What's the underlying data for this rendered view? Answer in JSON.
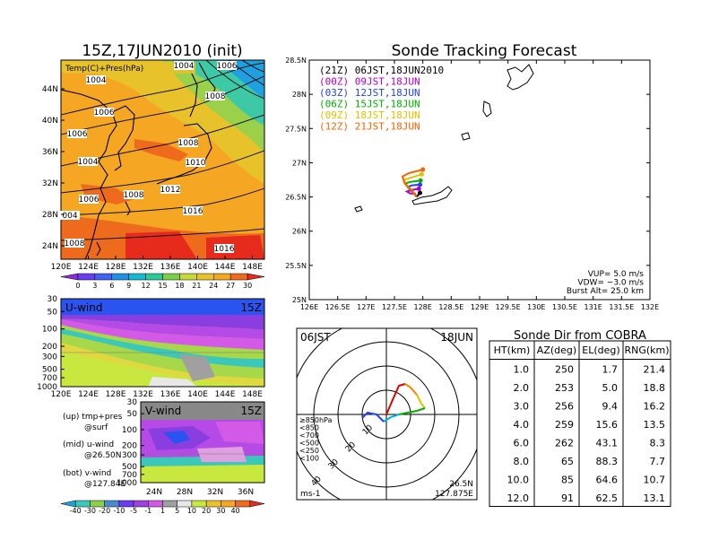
{
  "left": {
    "title": "15Z,17JUN2010 (init)",
    "map_label": "Temp(C)+Pres(hPa)",
    "lat_ticks": [
      "44N",
      "40N",
      "36N",
      "32N",
      "28N",
      "24N"
    ],
    "lon_ticks": [
      "120E",
      "124E",
      "128E",
      "132E",
      "136E",
      "140E",
      "144E",
      "148E"
    ],
    "isobar_labels": [
      "1006",
      "1004",
      "1004",
      "1006",
      "1008",
      "1006",
      "1008",
      "1010",
      "1004",
      "1012",
      "1006",
      "1008",
      "1016",
      "004",
      "1008",
      "1016"
    ],
    "temp_colorbar": [
      "0",
      "3",
      "6",
      "9",
      "12",
      "15",
      "18",
      "21",
      "24",
      "27",
      "30"
    ],
    "uwind_label": "U-wind",
    "uwind_time": "15Z",
    "vwind_label": "V-wind",
    "vwind_time": "15Z",
    "pres_ticks": [
      "30",
      "50",
      "100",
      "200",
      "300",
      "500",
      "700",
      "1000"
    ],
    "vwind_lat_ticks": [
      "24N",
      "28N",
      "32N",
      "36N"
    ],
    "notes": [
      "(up) tmp+pres",
      "@surf",
      "(mid) u-wind",
      "@26.50N",
      "(bot) v-wind",
      "@127.84E"
    ],
    "wind_colorbar": [
      "-40",
      "-30",
      "-20",
      "-10",
      "-5",
      "-1",
      "1",
      "5",
      "10",
      "20",
      "30",
      "40"
    ]
  },
  "track": {
    "title": "Sonde Tracking Forecast",
    "lat_ticks": [
      "28.5N",
      "28N",
      "27.5N",
      "27N",
      "26.5N",
      "26N",
      "25.5N",
      "25N"
    ],
    "lon_ticks": [
      "126E",
      "126.5E",
      "127E",
      "127.5E",
      "128E",
      "128.5E",
      "129E",
      "129.5E",
      "130E",
      "130.5E",
      "131E",
      "131.5E",
      "132E"
    ],
    "legend": [
      {
        "text": "(21Z)  06JST,18JUN2010",
        "color": "#000000"
      },
      {
        "text": "(00Z)  09JST,18JUN",
        "color": "#b000c8"
      },
      {
        "text": "(03Z)  12JST,18JUN",
        "color": "#2040ff"
      },
      {
        "text": "(06Z)  15JST,18JUN",
        "color": "#00b000"
      },
      {
        "text": "(09Z)  18JST,18JUN",
        "color": "#e0c000"
      },
      {
        "text": "(12Z)  21JST,18JUN",
        "color": "#ff6000"
      }
    ],
    "params": [
      "VUP= 5.0 m/s",
      "VDW= −3.0 m/s",
      "Burst Alt= 25.0 km"
    ]
  },
  "hodo": {
    "left_label": "06JST",
    "right_label": "18JUN",
    "ring_labels": [
      "10",
      "20",
      "30",
      "40"
    ],
    "level_legend": [
      {
        "text": "≥850hPa",
        "color": "#e00000"
      },
      {
        "text": "<850",
        "color": "#ff8000"
      },
      {
        "text": "<700",
        "color": "#e0c000"
      },
      {
        "text": "<500",
        "color": "#00b000"
      },
      {
        "text": "<250",
        "color": "#00b0e0"
      },
      {
        "text": "<100",
        "color": "#2040ff"
      }
    ],
    "unit": "ms-1",
    "loc_lat": "26.5N",
    "loc_lon": "127.875E"
  },
  "table": {
    "title": "Sonde Dir from COBRA",
    "headers": [
      "HT(km)",
      "AZ(deg)",
      "EL(deg)",
      "RNG(km)"
    ],
    "rows": [
      [
        "1.0",
        "250",
        "1.7",
        "21.4"
      ],
      [
        "2.0",
        "253",
        "5.0",
        "18.8"
      ],
      [
        "3.0",
        "256",
        "9.4",
        "16.2"
      ],
      [
        "4.0",
        "259",
        "15.6",
        "13.5"
      ],
      [
        "6.0",
        "262",
        "43.1",
        "8.3"
      ],
      [
        "8.0",
        "65",
        "88.3",
        "7.7"
      ],
      [
        "10.0",
        "85",
        "64.6",
        "10.7"
      ],
      [
        "12.0",
        "91",
        "62.5",
        "13.1"
      ]
    ]
  },
  "chart_data": [
    {
      "type": "heatmap",
      "title": "15Z,17JUN2010 (init)",
      "label": "Temp(C)+Pres(hPa)",
      "x_range": [
        "120E",
        "149E"
      ],
      "y_range": [
        "22N",
        "48N"
      ],
      "colorbar_levels": [
        0,
        3,
        6,
        9,
        12,
        15,
        18,
        21,
        24,
        27,
        30
      ],
      "contour_labels_hPa": [
        1004,
        1006,
        1008,
        1010,
        1012,
        1016
      ]
    },
    {
      "type": "heatmap",
      "label": "U-wind",
      "time": "15Z",
      "x_ticks": [
        "120E",
        "124E",
        "128E",
        "132E",
        "136E",
        "140E",
        "144E",
        "148E"
      ],
      "y_ticks_hPa": [
        30,
        50,
        100,
        200,
        300,
        500,
        700,
        1000
      ],
      "colorbar_levels": [
        -40,
        -30,
        -20,
        -10,
        -5,
        -1,
        1,
        5,
        10,
        20,
        30,
        40
      ]
    },
    {
      "type": "heatmap",
      "label": "V-wind",
      "time": "15Z",
      "x_ticks": [
        "24N",
        "28N",
        "32N",
        "36N"
      ],
      "y_ticks_hPa": [
        30,
        50,
        100,
        200,
        300,
        500,
        700,
        1000
      ]
    },
    {
      "type": "line",
      "title": "Sonde Tracking Forecast",
      "xlim": [
        126,
        132
      ],
      "ylim": [
        25,
        28.5
      ],
      "series": [
        {
          "name": "(21Z) 06JST,18JUN2010",
          "color": "#000000",
          "x": [
            127.89,
            127.92,
            127.95
          ],
          "y": [
            26.5,
            26.53,
            26.56
          ]
        },
        {
          "name": "(00Z) 09JST,18JUN",
          "color": "#b000c8",
          "x": [
            127.89,
            127.86,
            127.78,
            127.72,
            127.79,
            127.93
          ],
          "y": [
            26.5,
            26.55,
            26.55,
            26.58,
            26.6,
            26.62
          ]
        },
        {
          "name": "(03Z) 12JST,18JUN",
          "color": "#2040ff",
          "x": [
            127.89,
            127.84,
            127.77,
            127.75,
            127.81,
            127.95
          ],
          "y": [
            26.5,
            26.56,
            26.6,
            26.65,
            26.67,
            26.68
          ]
        },
        {
          "name": "(06Z) 15JST,18JUN",
          "color": "#00b000",
          "x": [
            127.89,
            127.82,
            127.73,
            127.7,
            127.78,
            127.96
          ],
          "y": [
            26.5,
            26.58,
            26.64,
            26.7,
            26.72,
            26.74
          ]
        },
        {
          "name": "(09Z) 18JST,18JUN",
          "color": "#e0c000",
          "x": [
            127.89,
            127.8,
            127.7,
            127.67,
            127.78,
            127.98
          ],
          "y": [
            26.5,
            26.6,
            26.67,
            26.75,
            26.78,
            26.83
          ]
        },
        {
          "name": "(12Z) 21JST,18JUN",
          "color": "#ff6000",
          "x": [
            127.89,
            127.78,
            127.68,
            127.64,
            127.76,
            128.0
          ],
          "y": [
            26.5,
            26.62,
            26.7,
            26.8,
            26.85,
            26.9
          ]
        }
      ]
    }
  ]
}
